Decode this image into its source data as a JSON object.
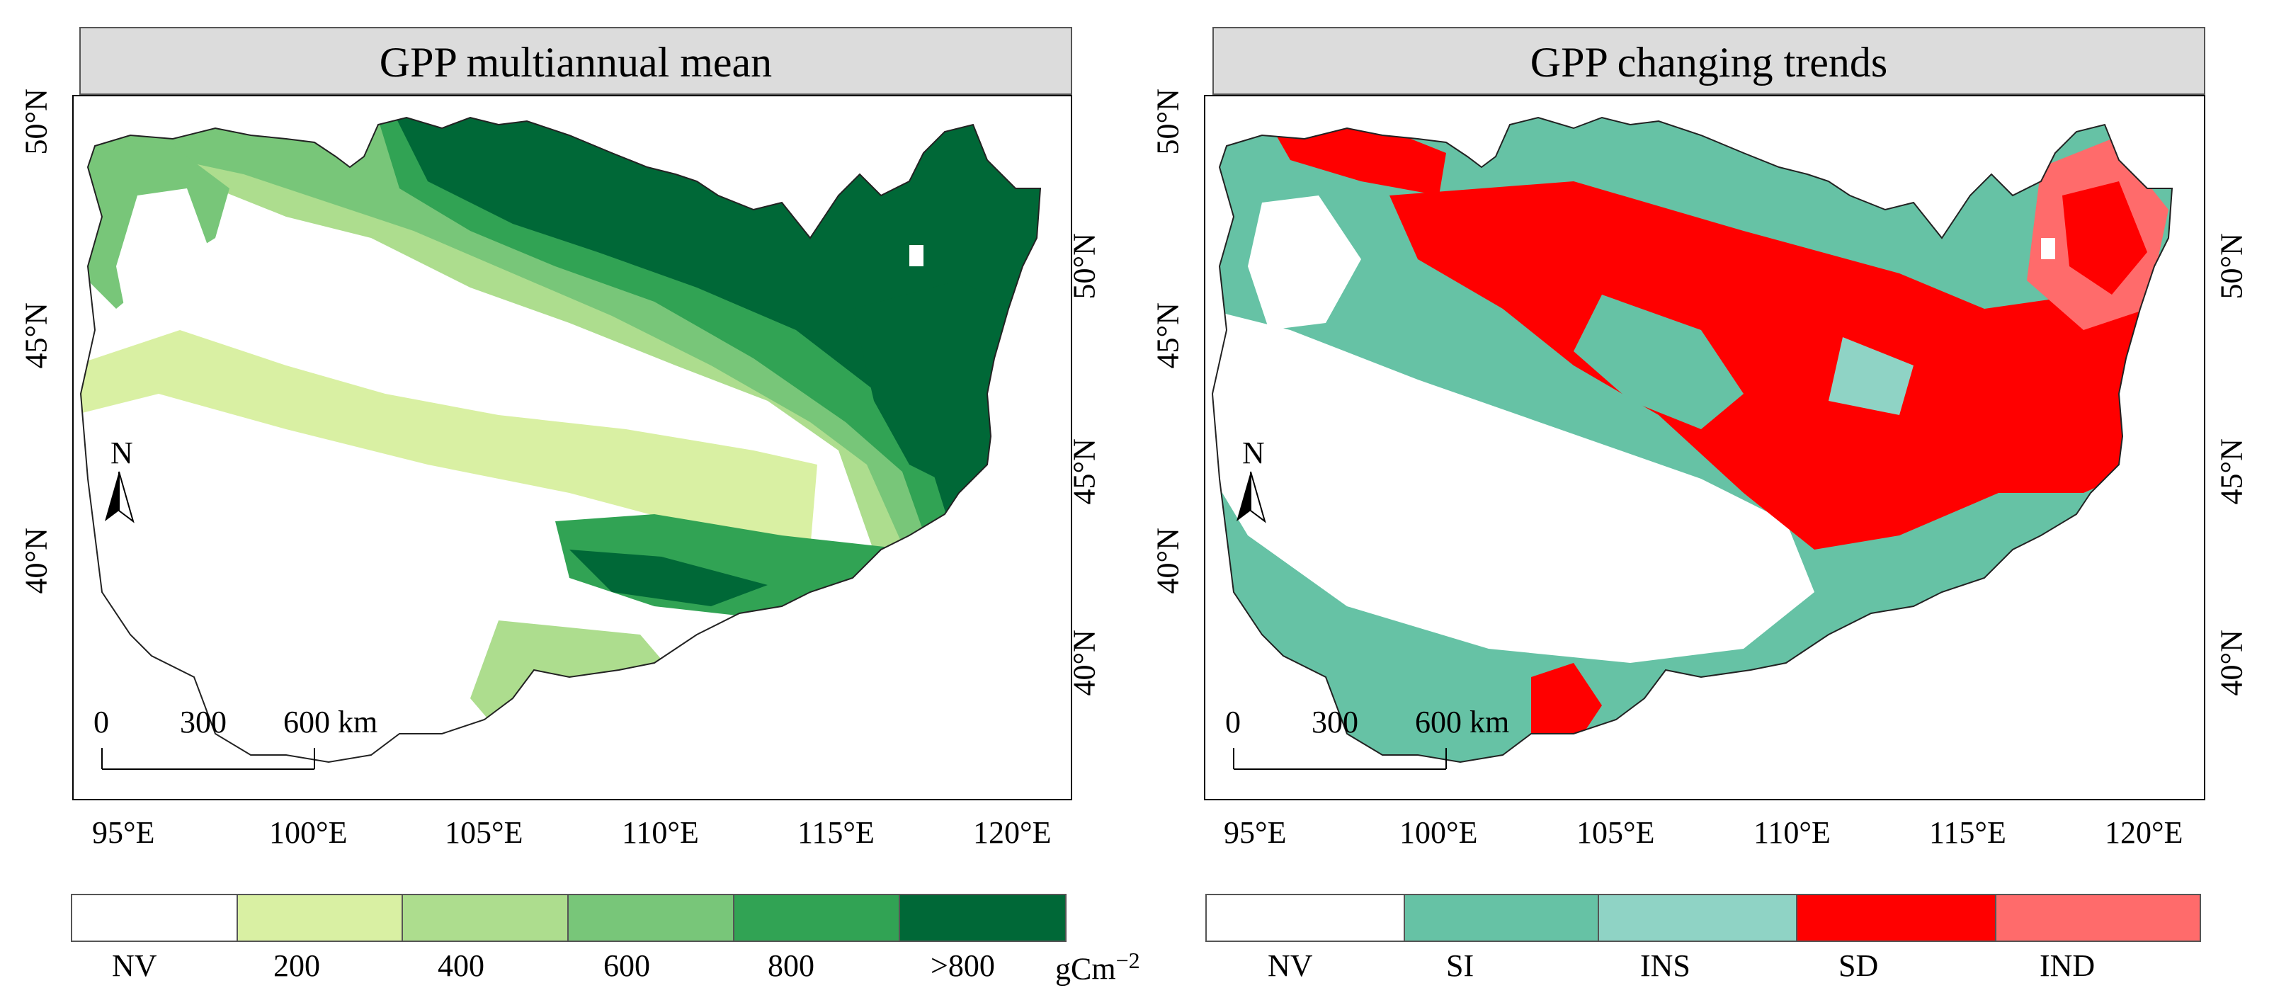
{
  "left_panel": {
    "title": "GPP multiannual mean",
    "lat_labels_left": [
      "50°N",
      "45°N",
      "40°N"
    ],
    "lat_labels_right": [
      "50°N",
      "45°N",
      "40°N"
    ],
    "lon_labels": [
      "95°E",
      "100°E",
      "105°E",
      "110°E",
      "115°E",
      "120°E"
    ],
    "north_label": "N",
    "scale_bar": {
      "labels": [
        "0",
        "300",
        "600 km"
      ]
    },
    "legend": {
      "labels": [
        "NV",
        "200",
        "400",
        "600",
        "800",
        ">800"
      ],
      "unit": "gCm",
      "unit_exp": "−2",
      "colors": [
        "#ffffff",
        "#d9f0a3",
        "#addd8e",
        "#78c679",
        "#31a354",
        "#006837"
      ]
    }
  },
  "right_panel": {
    "title": "GPP changing trends",
    "lat_labels_left": [
      "50°N",
      "45°N",
      "40°N"
    ],
    "lat_labels_right": [
      "50°N",
      "45°N",
      "40°N"
    ],
    "lon_labels": [
      "95°E",
      "100°E",
      "105°E",
      "110°E",
      "115°E",
      "120°E"
    ],
    "north_label": "N",
    "scale_bar": {
      "labels": [
        "0",
        "300",
        "600 km"
      ]
    },
    "legend": {
      "labels": [
        "NV",
        "SI",
        "INS",
        "SD",
        "IND"
      ],
      "colors": [
        "#ffffff",
        "#66c2a5",
        "#8fd3c5",
        "#ff0000",
        "#ff6b6b"
      ]
    }
  }
}
